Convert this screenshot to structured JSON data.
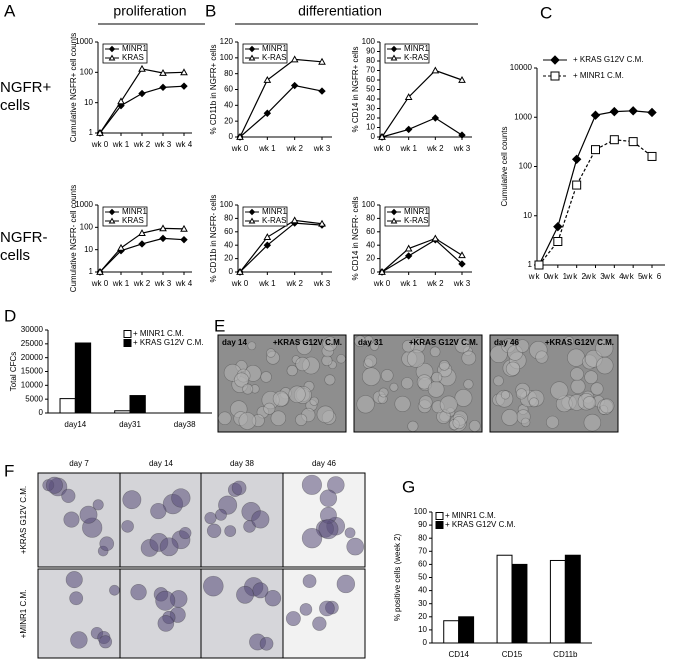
{
  "figure": {
    "panel_labels": [
      "A",
      "B",
      "C",
      "D",
      "E",
      "F",
      "G"
    ],
    "headers": [
      "proliferation",
      "differentiation"
    ],
    "row_labels": [
      [
        "NGFR+",
        "cells"
      ],
      [
        "NGFR-",
        "cells"
      ]
    ],
    "panel_e": [
      {
        "day": "day 14",
        "condition": "+KRAS G12V C.M."
      },
      {
        "day": "day 31",
        "condition": "+KRAS G12V C.M."
      },
      {
        "day": "day 46",
        "condition": "+KRAS G12V C.M."
      }
    ],
    "panel_f": {
      "days": [
        "day 7",
        "day 14",
        "day 38",
        "day 46"
      ],
      "conditions": [
        "+KRAS G12V C.M.",
        "+MINR1 C.M."
      ]
    }
  },
  "chart_data": [
    {
      "type": "line",
      "ylabel": "Cumulative NGFR+ cell counts",
      "log": true,
      "legend": "upper left",
      "categories": [
        "wk 0",
        "wk 1",
        "wk 2",
        "wk 3",
        "wk 4"
      ],
      "ylim": [
        1,
        1000
      ],
      "yticks": [
        1,
        10,
        100,
        1000
      ],
      "series": [
        {
          "name": "MINR1",
          "color": "#000000",
          "marker": "diamond",
          "marker_fill": "#000000",
          "values": [
            1,
            8,
            20,
            32,
            35
          ]
        },
        {
          "name": "KRAS",
          "color": "#000000",
          "marker": "triangle",
          "marker_fill": "#ffffff",
          "values": [
            1,
            11,
            130,
            95,
            100
          ]
        }
      ]
    },
    {
      "type": "line",
      "ylabel": "Cumulative NGFR- cell counts",
      "log": true,
      "legend": "upper left",
      "categories": [
        "wk 0",
        "wk 1",
        "wk 2",
        "wk 3",
        "wk 4"
      ],
      "ylim": [
        1,
        1000
      ],
      "yticks": [
        1,
        10,
        100,
        1000
      ],
      "series": [
        {
          "name": "MINR1",
          "color": "#000000",
          "marker": "diamond",
          "marker_fill": "#000000",
          "values": [
            1,
            9,
            18,
            32,
            28
          ]
        },
        {
          "name": "KRAS",
          "color": "#000000",
          "marker": "triangle",
          "marker_fill": "#ffffff",
          "values": [
            1,
            12,
            55,
            90,
            85
          ]
        }
      ]
    },
    {
      "type": "line",
      "ylabel": "% CD11b in NGFR+ cells",
      "log": false,
      "legend": "upper left",
      "categories": [
        "wk 0",
        "wk 1",
        "wk 2",
        "wk 3"
      ],
      "ylim": [
        0,
        120
      ],
      "yticks": [
        0,
        20,
        40,
        60,
        80,
        100,
        120
      ],
      "series": [
        {
          "name": "MINR1",
          "color": "#000000",
          "marker": "diamond",
          "marker_fill": "#000000",
          "values": [
            0,
            30,
            65,
            58
          ]
        },
        {
          "name": "K-RAS",
          "color": "#000000",
          "marker": "triangle",
          "marker_fill": "#ffffff",
          "values": [
            0,
            72,
            98,
            95
          ]
        }
      ]
    },
    {
      "type": "line",
      "ylabel": "% CD14 in NGFR+ cells",
      "log": false,
      "legend": "upper left",
      "categories": [
        "wk 0",
        "wk 1",
        "wk 2",
        "wk 3"
      ],
      "ylim": [
        0,
        100
      ],
      "yticks": [
        0,
        10,
        20,
        30,
        40,
        50,
        60,
        70,
        80,
        90,
        100
      ],
      "series": [
        {
          "name": "MINR1",
          "color": "#000000",
          "marker": "diamond",
          "marker_fill": "#000000",
          "values": [
            0,
            8,
            20,
            2
          ]
        },
        {
          "name": "K-RAS",
          "color": "#000000",
          "marker": "triangle",
          "marker_fill": "#ffffff",
          "values": [
            0,
            42,
            70,
            60
          ]
        }
      ]
    },
    {
      "type": "line",
      "ylabel": "% CD11b in NGFR- cells",
      "log": false,
      "legend": "upper left",
      "categories": [
        "wk 0",
        "wk 1",
        "wk 2",
        "wk 3"
      ],
      "ylim": [
        0,
        100
      ],
      "yticks": [
        0,
        20,
        40,
        60,
        80,
        100
      ],
      "series": [
        {
          "name": "MINR1",
          "color": "#000000",
          "marker": "diamond",
          "marker_fill": "#000000",
          "values": [
            0,
            40,
            73,
            70
          ]
        },
        {
          "name": "K-RAS",
          "color": "#000000",
          "marker": "triangle",
          "marker_fill": "#ffffff",
          "values": [
            0,
            52,
            77,
            72
          ]
        }
      ]
    },
    {
      "type": "line",
      "ylabel": "% CD14 in NGFR- cells",
      "log": false,
      "legend": "upper left",
      "categories": [
        "wk 0",
        "wk 1",
        "wk 2",
        "wk 3"
      ],
      "ylim": [
        0,
        100
      ],
      "yticks": [
        0,
        20,
        40,
        60,
        80,
        100
      ],
      "series": [
        {
          "name": "MINR1",
          "color": "#000000",
          "marker": "diamond",
          "marker_fill": "#000000",
          "values": [
            0,
            24,
            48,
            12
          ]
        },
        {
          "name": "K-RAS",
          "color": "#000000",
          "marker": "triangle",
          "marker_fill": "#ffffff",
          "values": [
            0,
            35,
            50,
            25
          ]
        }
      ]
    },
    {
      "type": "line",
      "ylabel": "Cumulative cell counts",
      "log": true,
      "legend": "top",
      "categories": [
        "wk 0",
        "wk 1",
        "wk 2",
        "wk 3",
        "wk 4",
        "wk 5",
        "wk 6"
      ],
      "ylim": [
        1,
        10000
      ],
      "yticks": [
        1,
        10,
        100,
        1000,
        10000
      ],
      "series": [
        {
          "name": "+ KRAS G12V C.M.",
          "color": "#000000",
          "marker": "diamond",
          "marker_fill": "#000000",
          "dash": false,
          "values": [
            1,
            6,
            140,
            1100,
            1300,
            1350,
            1250
          ]
        },
        {
          "name": "+ MINR1 C.M.",
          "color": "#000000",
          "marker": "square",
          "marker_fill": "#ffffff",
          "dash": true,
          "values": [
            1,
            3,
            42,
            220,
            350,
            320,
            160
          ]
        }
      ]
    },
    {
      "type": "bar",
      "ylabel": "Total CFCs",
      "legend": "upper right",
      "categories": [
        "day14",
        "day31",
        "day38"
      ],
      "ylim": [
        0,
        30000
      ],
      "yticks": [
        0,
        5000,
        10000,
        15000,
        20000,
        25000,
        30000
      ],
      "series": [
        {
          "name": "+ MINR1 C.M.",
          "color": "#ffffff",
          "values": [
            5200,
            800,
            null
          ]
        },
        {
          "name": "+ KRAS G12V C.M.",
          "color": "#000000",
          "values": [
            25300,
            6300,
            9700
          ]
        }
      ]
    },
    {
      "type": "bar",
      "ylabel": "% positive cells (week 2)",
      "legend": "upper left",
      "categories": [
        "CD14",
        "CD15",
        "CD11b"
      ],
      "ylim": [
        0,
        100
      ],
      "yticks": [
        0,
        10,
        20,
        30,
        40,
        50,
        60,
        70,
        80,
        90,
        100
      ],
      "series": [
        {
          "name": "+ MINR1 C.M.",
          "color": "#ffffff",
          "values": [
            17,
            67,
            63
          ]
        },
        {
          "name": "+ KRAS G12V C.M.",
          "color": "#000000",
          "values": [
            20,
            60,
            67
          ]
        }
      ]
    }
  ]
}
